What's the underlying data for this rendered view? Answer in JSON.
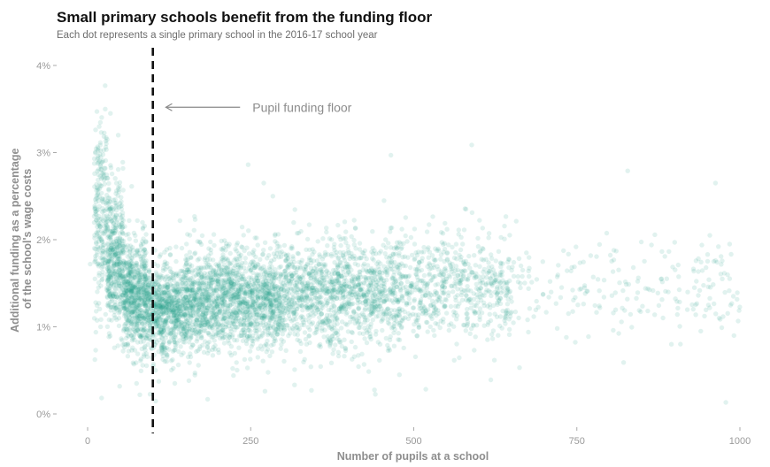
{
  "chart_data": {
    "type": "scatter",
    "title": "Small primary schools benefit from the funding floor",
    "subtitle": "Each dot represents a single primary school in the 2016-17 school year",
    "xlabel": "Number of pupils at a school",
    "ylabel_lines": [
      "Additional funding as a percentage",
      "of the school's wage costs"
    ],
    "xlim": [
      -25,
      1000
    ],
    "ylim": [
      0,
      4.2
    ],
    "x_ticks": [
      0,
      250,
      500,
      750,
      1000
    ],
    "x_tick_labels": [
      "0",
      "250",
      "500",
      "750",
      "1000"
    ],
    "y_ticks": [
      0,
      1,
      2,
      3,
      4
    ],
    "y_tick_labels": [
      "0%",
      "1%",
      "2%",
      "3%",
      "4%"
    ],
    "grid": false,
    "legend": "none",
    "point_color": "#2aa58f",
    "point_opacity": 0.14,
    "reference_line": {
      "x": 100,
      "label": "Pupil funding floor",
      "style": "dashed",
      "color": "#111111"
    },
    "annotation": {
      "text": "Pupil funding floor",
      "arrow_from": [
        250,
        3.52
      ],
      "arrow_to": [
        120,
        3.52
      ]
    },
    "density_bands": [
      {
        "x_range": [
          10,
          30
        ],
        "y_mean": 2.3,
        "y_spread": 0.55,
        "count": 220
      },
      {
        "x_range": [
          30,
          55
        ],
        "y_mean": 1.8,
        "y_spread": 0.4,
        "count": 420
      },
      {
        "x_range": [
          55,
          90
        ],
        "y_mean": 1.35,
        "y_spread": 0.32,
        "count": 600
      },
      {
        "x_range": [
          90,
          150
        ],
        "y_mean": 1.2,
        "y_spread": 0.25,
        "count": 750
      },
      {
        "x_range": [
          150,
          300
        ],
        "y_mean": 1.3,
        "y_spread": 0.28,
        "count": 1600
      },
      {
        "x_range": [
          300,
          480
        ],
        "y_mean": 1.38,
        "y_spread": 0.3,
        "count": 1200
      },
      {
        "x_range": [
          480,
          650
        ],
        "y_mean": 1.45,
        "y_spread": 0.3,
        "count": 600
      },
      {
        "x_range": [
          650,
          1000
        ],
        "y_mean": 1.45,
        "y_spread": 0.28,
        "count": 220
      }
    ],
    "highlighted_points": [
      {
        "x": 27,
        "y": 3.5
      },
      {
        "x": 35,
        "y": 3.45
      },
      {
        "x": 30,
        "y": 3.15
      },
      {
        "x": 47,
        "y": 3.2
      },
      {
        "x": 465,
        "y": 2.97
      },
      {
        "x": 828,
        "y": 2.79
      },
      {
        "x": 270,
        "y": 2.65
      },
      {
        "x": 580,
        "y": 2.35
      },
      {
        "x": 900,
        "y": 1.97
      },
      {
        "x": 990,
        "y": 1.35
      },
      {
        "x": 895,
        "y": 0.8
      },
      {
        "x": 478,
        "y": 0.45
      },
      {
        "x": 75,
        "y": 0.35
      },
      {
        "x": 80,
        "y": 0.22
      },
      {
        "x": 4,
        "y": 1.72
      },
      {
        "x": 20,
        "y": 1.0
      },
      {
        "x": 960,
        "y": 1.75
      },
      {
        "x": 940,
        "y": 0.95
      }
    ]
  }
}
